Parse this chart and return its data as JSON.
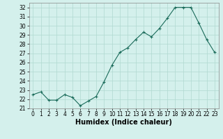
{
  "x": [
    0,
    1,
    2,
    3,
    4,
    5,
    6,
    7,
    8,
    9,
    10,
    11,
    12,
    13,
    14,
    15,
    16,
    17,
    18,
    19,
    20,
    21,
    22,
    23
  ],
  "y": [
    22.5,
    22.8,
    21.9,
    21.9,
    22.5,
    22.2,
    21.3,
    21.8,
    22.3,
    23.9,
    25.7,
    27.1,
    27.6,
    28.5,
    29.3,
    28.8,
    29.7,
    30.8,
    32.0,
    32.0,
    32.0,
    30.3,
    28.5,
    27.1
  ],
  "line_color": "#1a6b5a",
  "marker": "+",
  "marker_size": 3,
  "bg_color": "#d4f0ec",
  "grid_color": "#b0d8d0",
  "xlabel": "Humidex (Indice chaleur)",
  "ylim": [
    21,
    32.5
  ],
  "xlim": [
    -0.5,
    23.5
  ],
  "yticks": [
    21,
    22,
    23,
    24,
    25,
    26,
    27,
    28,
    29,
    30,
    31,
    32
  ],
  "xticks": [
    0,
    1,
    2,
    3,
    4,
    5,
    6,
    7,
    8,
    9,
    10,
    11,
    12,
    13,
    14,
    15,
    16,
    17,
    18,
    19,
    20,
    21,
    22,
    23
  ],
  "tick_fontsize": 5.5,
  "xlabel_fontsize": 7
}
